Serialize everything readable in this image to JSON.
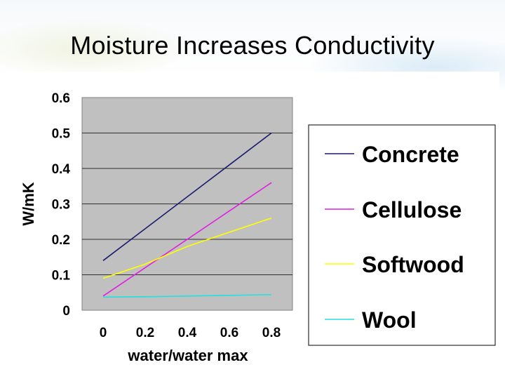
{
  "slide": {
    "title": "Moisture Increases Conductivity"
  },
  "chart_data": {
    "type": "line",
    "title": "",
    "xlabel": "water/water max",
    "ylabel": "W/mK",
    "x": [
      0,
      0.2,
      0.4,
      0.6,
      0.8
    ],
    "x_ticks": [
      "0",
      "0.2",
      "0.4",
      "0.6",
      "0.8"
    ],
    "y_ticks": [
      "0",
      "0.1",
      "0.2",
      "0.3",
      "0.4",
      "0.5",
      "0.6"
    ],
    "xlim": [
      -0.1,
      0.9
    ],
    "ylim": [
      0,
      0.6
    ],
    "grid": true,
    "plot_background": "#c0c0c0",
    "legend_position": "right",
    "series": [
      {
        "name": "Concrete",
        "color": "#1a1a70",
        "values": [
          0.14,
          0.23,
          0.32,
          0.41,
          0.5
        ]
      },
      {
        "name": "Cellulose",
        "color": "#e020e0",
        "values": [
          0.04,
          0.12,
          0.2,
          0.28,
          0.36
        ]
      },
      {
        "name": "Softwood",
        "color": "#ffff00",
        "values": [
          0.09,
          0.13,
          0.18,
          0.22,
          0.26
        ]
      },
      {
        "name": "Wool",
        "color": "#20e0e0",
        "values": [
          0.037,
          0.038,
          0.04,
          0.042,
          0.044
        ]
      }
    ]
  }
}
